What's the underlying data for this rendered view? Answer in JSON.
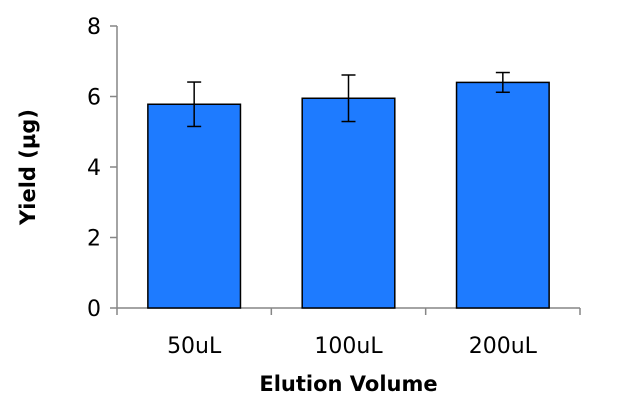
{
  "chart_data": {
    "type": "bar",
    "title": "",
    "xlabel": "Elution Volume",
    "ylabel": "Yield (µg)",
    "categories": [
      "50uL",
      "100uL",
      "200uL"
    ],
    "values": [
      5.78,
      5.95,
      6.4
    ],
    "error": [
      0.63,
      0.66,
      0.28
    ],
    "ylim": [
      0,
      8
    ],
    "yticks": [
      0,
      2,
      4,
      6,
      8
    ],
    "grid": false,
    "legend": "none",
    "bar_color": "#1E7BFF"
  }
}
